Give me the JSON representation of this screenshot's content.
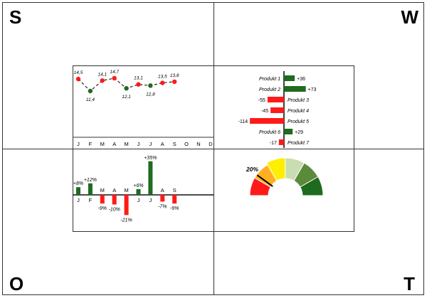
{
  "corners": {
    "top_left": "S",
    "top_right": "W",
    "bottom_left": "O",
    "bottom_right": "T"
  },
  "colors": {
    "red": "#ff1a1a",
    "green": "#1f6b1f",
    "dark_green": "#1e6a1e"
  },
  "chart_data": [
    {
      "type": "line",
      "categories": [
        "J",
        "F",
        "M",
        "A",
        "M",
        "J",
        "J",
        "A",
        "S",
        "O",
        "N",
        "D"
      ],
      "values": [
        14.5,
        11.4,
        14.1,
        14.7,
        12.1,
        13.1,
        12.8,
        13.5,
        13.8
      ],
      "labels": [
        "14,5",
        "11,4",
        "14,1",
        "14,7",
        "12,1",
        "13,1",
        "12,8",
        "13,5",
        "13,8"
      ],
      "point_colors": [
        "red",
        "green",
        "red",
        "red",
        "green",
        "red",
        "green",
        "red",
        "red"
      ]
    },
    {
      "type": "bar",
      "orientation": "horizontal",
      "categories": [
        "Produkt 1",
        "Produkt 2",
        "Produkt 3",
        "Produkt 4",
        "Produkt 5",
        "Produkt 6",
        "Produkt 7"
      ],
      "values": [
        36,
        73,
        -55,
        -45,
        -114,
        29,
        -17
      ],
      "labels": [
        "+36",
        "+73",
        "-55",
        "-45",
        "-114",
        "+29",
        "-17"
      ]
    },
    {
      "type": "bar",
      "categories": [
        "J",
        "F",
        "M",
        "A",
        "M",
        "J",
        "J",
        "A",
        "S"
      ],
      "values": [
        8,
        12,
        -9,
        -10,
        -21,
        6,
        35,
        -7,
        -9
      ],
      "labels": [
        "+8%",
        "+12%",
        "-9%",
        "-10%",
        "-21%",
        "+6%",
        "+35%",
        "-7%",
        "-9%"
      ]
    },
    {
      "type": "gauge",
      "value_label": "20%",
      "value": 20,
      "segment_colors": [
        "#ff1a1a",
        "#ffb020",
        "#ffee00",
        "#c8ddb0",
        "#5a8a3a",
        "#1e6a1e"
      ]
    }
  ]
}
